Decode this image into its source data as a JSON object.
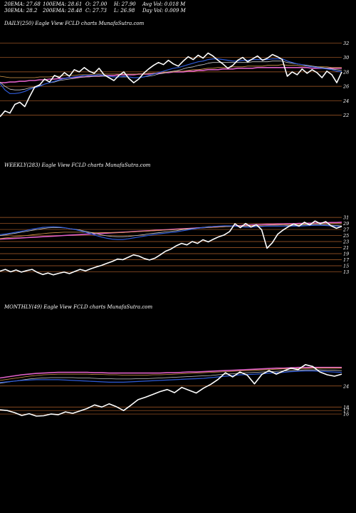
{
  "header": [
    [
      "20EMA: 27.68",
      "100EMA: 28.61",
      "O: 27.00",
      "H: 27.90",
      "Avg Vol: 0.018  M"
    ],
    [
      "30EMA: 28.2",
      "200EMA: 28.48",
      "C: 27.73",
      "L: 26.98",
      "Day Vol: 0.009 M"
    ]
  ],
  "colors": {
    "background": "#000000",
    "price": "#ffffff",
    "ema20": "#2f5bd8",
    "ema30": "#c8c8c8",
    "ema100": "#d79a4a",
    "ema200": "#e060c8",
    "gridline": "#b0602a"
  },
  "chart_data": [
    {
      "type": "line",
      "title": "DAILY(250) Eagle  View FCLD charts MunafaSutra.com",
      "yticks": [
        32,
        30,
        28,
        26,
        24,
        22
      ],
      "ylim": [
        20.2,
        34.0
      ],
      "series": [
        {
          "name": "price",
          "values": [
            21.8,
            22.6,
            22.3,
            23.5,
            23.8,
            23.2,
            24.6,
            25.9,
            26.2,
            27.0,
            26.6,
            27.5,
            27.2,
            27.9,
            27.4,
            28.3,
            28.0,
            28.6,
            28.1,
            27.8,
            28.5,
            27.6,
            27.2,
            26.8,
            27.5,
            28.0,
            27.1,
            26.5,
            27.0,
            27.8,
            28.4,
            28.9,
            29.3,
            29.0,
            29.6,
            29.1,
            28.8,
            29.5,
            30.1,
            29.7,
            30.3,
            29.9,
            30.6,
            30.2,
            29.6,
            29.1,
            28.5,
            28.9,
            29.6,
            30.0,
            29.4,
            29.8,
            30.2,
            29.6,
            29.9,
            30.4,
            30.1,
            29.7,
            27.4,
            28.0,
            27.6,
            28.4,
            27.8,
            28.3,
            27.9,
            27.2,
            28.1,
            27.6,
            26.5,
            28.0
          ]
        },
        {
          "name": "20EMA",
          "values": [
            26.4,
            25.5,
            25.0,
            25.0,
            25.1,
            25.3,
            25.6,
            25.8,
            26.0,
            26.3,
            26.5,
            26.7,
            26.9,
            27.1,
            27.2,
            27.3,
            27.4,
            27.5,
            27.5,
            27.5,
            27.6,
            27.5,
            27.4,
            27.3,
            27.3,
            27.4,
            27.3,
            27.2,
            27.2,
            27.3,
            27.5,
            27.7,
            27.9,
            28.1,
            28.3,
            28.5,
            28.6,
            28.8,
            29.0,
            29.2,
            29.4,
            29.5,
            29.7,
            29.8,
            29.8,
            29.7,
            29.6,
            29.5,
            29.5,
            29.6,
            29.6,
            29.7,
            29.7,
            29.7,
            29.7,
            29.8,
            29.8,
            29.8,
            29.5,
            29.3,
            29.1,
            29.0,
            28.8,
            28.7,
            28.6,
            28.5,
            28.4,
            28.3,
            28.1,
            28.0
          ]
        },
        {
          "name": "30EMA",
          "values": [
            26.6,
            26.0,
            25.6,
            25.5,
            25.5,
            25.6,
            25.8,
            25.9,
            26.1,
            26.3,
            26.5,
            26.6,
            26.8,
            26.9,
            27.0,
            27.1,
            27.2,
            27.3,
            27.3,
            27.4,
            27.4,
            27.4,
            27.4,
            27.3,
            27.3,
            27.3,
            27.3,
            27.2,
            27.2,
            27.3,
            27.4,
            27.5,
            27.7,
            27.8,
            28.0,
            28.1,
            28.2,
            28.4,
            28.6,
            28.7,
            28.9,
            29.0,
            29.2,
            29.3,
            29.3,
            29.3,
            29.3,
            29.3,
            29.3,
            29.3,
            29.3,
            29.4,
            29.4,
            29.4,
            29.4,
            29.5,
            29.5,
            29.5,
            29.3,
            29.2,
            29.1,
            29.0,
            28.9,
            28.8,
            28.7,
            28.6,
            28.5,
            28.4,
            28.3,
            28.2
          ]
        },
        {
          "name": "100EMA",
          "values": [
            27.4,
            27.3,
            27.2,
            27.2,
            27.2,
            27.2,
            27.2,
            27.2,
            27.3,
            27.3,
            27.3,
            27.4,
            27.4,
            27.5,
            27.5,
            27.5,
            27.6,
            27.6,
            27.6,
            27.7,
            27.7,
            27.7,
            27.7,
            27.7,
            27.7,
            27.7,
            27.7,
            27.7,
            27.7,
            27.7,
            27.8,
            27.8,
            27.9,
            27.9,
            28.0,
            28.0,
            28.1,
            28.1,
            28.2,
            28.3,
            28.3,
            28.4,
            28.5,
            28.5,
            28.6,
            28.6,
            28.6,
            28.7,
            28.7,
            28.7,
            28.8,
            28.8,
            28.8,
            28.8,
            28.9,
            28.9,
            28.9,
            29.0,
            28.9,
            28.9,
            28.9,
            28.8,
            28.8,
            28.8,
            28.7,
            28.7,
            28.7,
            28.6,
            28.6,
            28.6
          ]
        },
        {
          "name": "200EMA",
          "values": [
            26.5,
            26.5,
            26.6,
            26.6,
            26.7,
            26.7,
            26.8,
            26.8,
            26.9,
            26.9,
            27.0,
            27.0,
            27.1,
            27.1,
            27.2,
            27.2,
            27.3,
            27.3,
            27.4,
            27.4,
            27.4,
            27.5,
            27.5,
            27.5,
            27.6,
            27.6,
            27.6,
            27.6,
            27.7,
            27.7,
            27.7,
            27.8,
            27.8,
            27.9,
            27.9,
            28.0,
            28.0,
            28.0,
            28.1,
            28.1,
            28.2,
            28.2,
            28.3,
            28.3,
            28.3,
            28.4,
            28.4,
            28.4,
            28.5,
            28.5,
            28.5,
            28.5,
            28.6,
            28.6,
            28.6,
            28.6,
            28.6,
            28.6,
            28.6,
            28.6,
            28.6,
            28.6,
            28.6,
            28.5,
            28.5,
            28.5,
            28.5,
            28.5,
            28.5,
            28.5
          ]
        }
      ]
    },
    {
      "type": "line",
      "title": "WEEKLY(283) Eagle  View FCLD charts MunafaSutra.com",
      "yticks": [
        31,
        29,
        27,
        25,
        23,
        21,
        19,
        17,
        15,
        13
      ],
      "ylim": [
        12.4,
        32.2
      ],
      "series": [
        {
          "name": "price",
          "values": [
            13.2,
            13.8,
            13.0,
            13.6,
            12.9,
            13.4,
            13.8,
            12.8,
            12.1,
            12.6,
            12.0,
            12.5,
            12.9,
            12.4,
            13.1,
            13.8,
            13.3,
            14.0,
            14.6,
            15.1,
            15.8,
            16.4,
            17.2,
            17.0,
            17.8,
            18.6,
            18.2,
            17.4,
            16.9,
            17.5,
            18.6,
            19.8,
            20.5,
            21.6,
            22.4,
            21.9,
            23.0,
            22.4,
            23.6,
            22.9,
            23.8,
            24.6,
            25.2,
            26.3,
            28.9,
            27.6,
            29.0,
            27.8,
            28.6,
            26.9,
            20.8,
            22.6,
            25.4,
            26.8,
            27.9,
            28.8,
            28.1,
            29.4,
            28.5,
            29.8,
            28.9,
            29.6,
            28.2,
            27.4,
            28.0
          ]
        },
        {
          "name": "20EMA",
          "values": [
            25.3,
            25.5,
            25.8,
            26.1,
            26.4,
            26.7,
            27.1,
            27.4,
            27.7,
            27.8,
            27.9,
            27.8,
            27.6,
            27.3,
            27.0,
            26.6,
            26.1,
            25.6,
            25.0,
            24.5,
            24.1,
            23.8,
            23.7,
            23.7,
            23.9,
            24.2,
            24.5,
            24.8,
            25.1,
            25.4,
            25.6,
            25.8,
            26.0,
            26.2,
            26.5,
            26.8,
            27.1,
            27.4,
            27.6,
            27.8,
            28.0,
            28.1,
            28.2,
            28.2,
            28.1,
            27.9,
            27.8,
            27.8,
            27.9,
            28.0,
            28.1,
            28.1,
            28.1,
            28.1,
            28.1,
            28.1,
            28.1,
            28.2,
            28.3,
            28.4,
            28.4,
            28.3,
            28.2,
            28.1,
            27.9
          ]
        },
        {
          "name": "30EMA",
          "values": [
            25.0,
            25.2,
            25.5,
            25.8,
            26.1,
            26.4,
            26.7,
            27.0,
            27.3,
            27.5,
            27.6,
            27.6,
            27.5,
            27.3,
            27.1,
            26.8,
            26.4,
            26.0,
            25.6,
            25.2,
            24.9,
            24.7,
            24.6,
            24.6,
            24.7,
            24.9,
            25.1,
            25.3,
            25.6,
            25.8,
            26.0,
            26.2,
            26.4,
            26.6,
            26.9,
            27.1,
            27.3,
            27.5,
            27.7,
            27.9,
            28.0,
            28.1,
            28.1,
            28.1,
            28.1,
            28.0,
            27.9,
            27.9,
            28.0,
            28.1,
            28.1,
            28.2,
            28.2,
            28.2,
            28.3,
            28.3,
            28.4,
            28.5,
            28.5,
            28.6,
            28.6,
            28.5,
            28.4,
            28.3,
            28.2
          ]
        },
        {
          "name": "100EMA",
          "values": [
            24.0,
            24.2,
            24.4,
            24.6,
            24.8,
            25.0,
            25.2,
            25.4,
            25.6,
            25.8,
            25.9,
            26.0,
            26.1,
            26.1,
            26.1,
            26.1,
            26.1,
            26.0,
            26.0,
            26.0,
            26.0,
            26.0,
            26.0,
            26.0,
            26.1,
            26.2,
            26.3,
            26.4,
            26.5,
            26.6,
            26.7,
            26.8,
            26.9,
            27.0,
            27.1,
            27.2,
            27.3,
            27.4,
            27.5,
            27.6,
            27.7,
            27.8,
            27.9,
            28.0,
            28.1,
            28.2,
            28.2,
            28.3,
            28.3,
            28.4,
            28.4,
            28.5,
            28.5,
            28.6,
            28.6,
            28.7,
            28.7,
            28.8,
            28.8,
            28.9,
            28.9,
            28.9,
            28.9,
            28.9,
            28.9
          ]
        },
        {
          "name": "200EMA",
          "values": [
            23.8,
            23.9,
            24.0,
            24.1,
            24.2,
            24.3,
            24.4,
            24.5,
            24.6,
            24.7,
            24.8,
            24.9,
            25.0,
            25.1,
            25.2,
            25.3,
            25.4,
            25.5,
            25.6,
            25.7,
            25.8,
            25.9,
            26.0,
            26.1,
            26.2,
            26.3,
            26.4,
            26.5,
            26.6,
            26.7,
            26.8,
            26.9,
            27.0,
            27.1,
            27.2,
            27.3,
            27.4,
            27.5,
            27.6,
            27.7,
            27.8,
            27.9,
            28.0,
            28.1,
            28.2,
            28.3,
            28.4,
            28.5,
            28.6,
            28.6,
            28.7,
            28.7,
            28.8,
            28.8,
            28.9,
            28.9,
            29.0,
            29.0,
            29.1,
            29.1,
            29.2,
            29.2,
            29.3,
            29.3,
            29.4
          ]
        }
      ]
    },
    {
      "type": "line",
      "title": "MONTHLY(49) Eagle  View FCLD charts MunafaSutra.com",
      "yticks": [
        24,
        18,
        17,
        16
      ],
      "ylim": [
        15.0,
        32.5
      ],
      "series": [
        {
          "name": "price",
          "values": [
            17.2,
            17.0,
            16.4,
            15.6,
            16.1,
            15.4,
            15.5,
            16.0,
            15.8,
            16.6,
            16.2,
            16.9,
            17.6,
            18.6,
            18.0,
            18.9,
            18.1,
            17.0,
            18.5,
            20.1,
            20.8,
            21.6,
            22.4,
            23.0,
            22.1,
            23.6,
            22.8,
            22.0,
            23.4,
            24.5,
            25.9,
            27.8,
            26.6,
            28.0,
            27.1,
            24.6,
            27.3,
            28.4,
            27.4,
            28.3,
            29.1,
            28.7,
            30.1,
            29.6,
            28.0,
            27.2,
            26.8,
            27.4
          ]
        },
        {
          "name": "20EMA",
          "values": [
            25.0,
            25.2,
            25.4,
            25.6,
            25.7,
            25.8,
            25.8,
            25.8,
            25.8,
            25.7,
            25.6,
            25.5,
            25.4,
            25.3,
            25.2,
            25.1,
            25.1,
            25.1,
            25.2,
            25.3,
            25.4,
            25.5,
            25.6,
            25.7,
            25.8,
            25.9,
            26.0,
            26.1,
            26.2,
            26.4,
            26.6,
            26.8,
            27.0,
            27.2,
            27.3,
            27.4,
            27.5,
            27.7,
            27.8,
            27.9,
            28.1,
            28.2,
            28.3,
            28.3,
            28.2,
            28.1,
            28.0,
            27.9
          ]
        },
        {
          "name": "30EMA",
          "values": [
            24.8,
            25.1,
            25.4,
            25.7,
            26.0,
            26.2,
            26.3,
            26.4,
            26.4,
            26.4,
            26.4,
            26.3,
            26.3,
            26.2,
            26.1,
            26.1,
            26.0,
            26.0,
            26.0,
            26.1,
            26.1,
            26.2,
            26.3,
            26.4,
            26.5,
            26.6,
            26.7,
            26.8,
            26.9,
            27.0,
            27.2,
            27.4,
            27.5,
            27.7,
            27.8,
            27.9,
            28.0,
            28.1,
            28.2,
            28.3,
            28.4,
            28.5,
            28.6,
            28.6,
            28.6,
            28.5,
            28.5,
            28.4
          ]
        },
        {
          "name": "100EMA",
          "values": [
            25.6,
            25.9,
            26.2,
            26.5,
            26.8,
            27.0,
            27.2,
            27.3,
            27.4,
            27.4,
            27.4,
            27.4,
            27.4,
            27.3,
            27.3,
            27.2,
            27.2,
            27.1,
            27.1,
            27.1,
            27.1,
            27.2,
            27.2,
            27.3,
            27.4,
            27.5,
            27.6,
            27.7,
            27.8,
            27.9,
            28.0,
            28.1,
            28.2,
            28.3,
            28.4,
            28.5,
            28.6,
            28.7,
            28.8,
            28.9,
            28.9,
            29.0,
            29.0,
            29.1,
            29.1,
            29.1,
            29.1,
            29.1
          ]
        },
        {
          "name": "200EMA",
          "values": [
            26.3,
            26.6,
            26.9,
            27.2,
            27.4,
            27.6,
            27.7,
            27.8,
            27.9,
            27.9,
            27.9,
            27.9,
            27.9,
            27.8,
            27.8,
            27.7,
            27.7,
            27.7,
            27.7,
            27.7,
            27.7,
            27.7,
            27.7,
            27.8,
            27.8,
            27.9,
            28.0,
            28.0,
            28.1,
            28.2,
            28.3,
            28.4,
            28.5,
            28.6,
            28.7,
            28.8,
            28.9,
            29.0,
            29.1,
            29.1,
            29.2,
            29.3,
            29.3,
            29.3,
            29.3,
            29.3,
            29.3,
            29.3
          ]
        }
      ]
    }
  ]
}
